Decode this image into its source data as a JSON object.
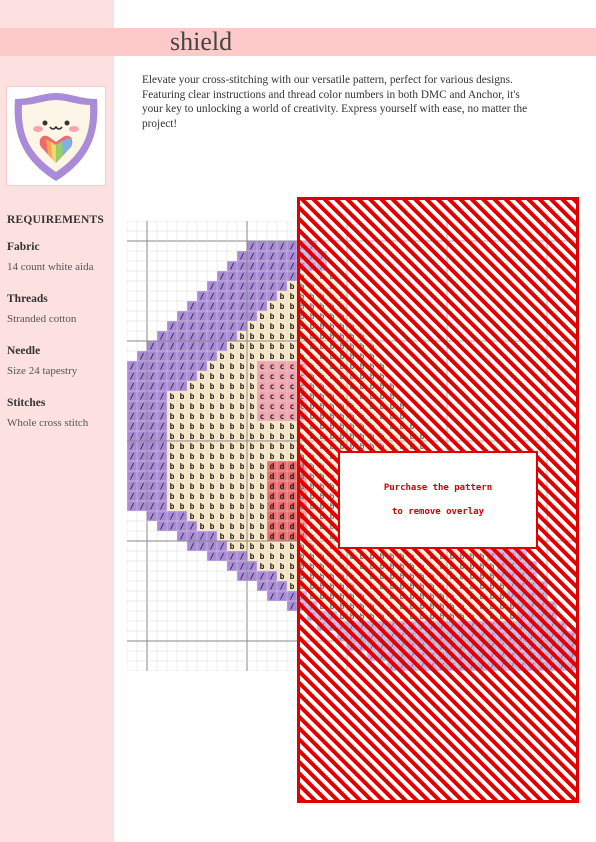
{
  "title": "shield",
  "description": "Elevate your cross-stitching with our versatile pattern, perfect for various designs. Featuring clear instructions and thread color numbers in both DMC and Anchor, it's your key to unlocking a world of creativity. Express yourself with ease, no matter the project!",
  "thumbnail": {
    "icon": "kawaii-shield-rainbow-heart"
  },
  "requirements": {
    "heading": "REQUIREMENTS",
    "items": [
      {
        "label": "Fabric",
        "value": "14 count white aida"
      },
      {
        "label": "Threads",
        "value": "Stranded cotton"
      },
      {
        "label": "Needle",
        "value": "Size 24 tapestry"
      },
      {
        "label": "Stitches",
        "value": "Whole cross stitch"
      }
    ]
  },
  "overlay": {
    "line1": "Purchase the pattern",
    "line2": "to remove overlay"
  },
  "pattern": {
    "symbols": {
      "purple": "/",
      "cream": "b",
      "pink": "c",
      "red": "d"
    },
    "colors": {
      "purple": "#a98bd8",
      "cream": "#fbe8c6",
      "pink": "#f3a3ad",
      "red": "#ec6b6b",
      "orange": "#f7a65a",
      "yellow": "#f6d66b",
      "green": "#93cf6c",
      "overlay_red": "#e00000"
    }
  }
}
